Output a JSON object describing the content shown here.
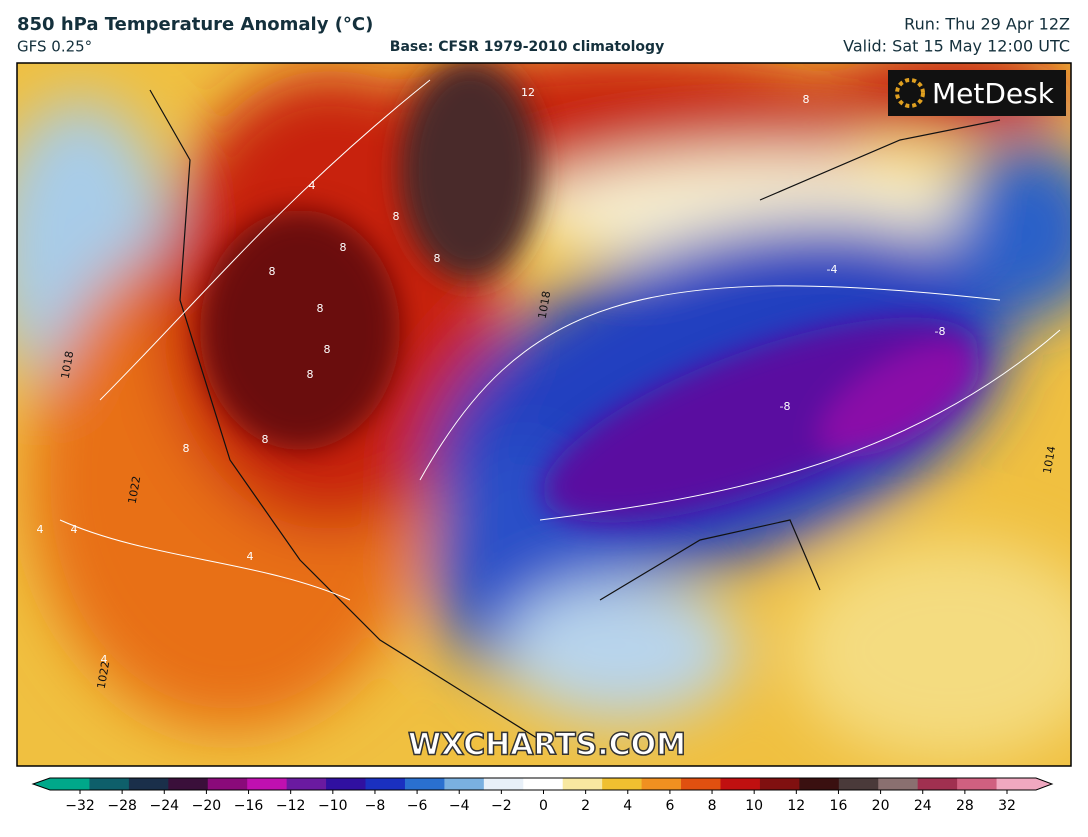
{
  "header": {
    "title": "850 hPa Temperature Anomaly (°C)",
    "model": "GFS 0.25°",
    "base": "Base: CFSR 1979-2010 climatology",
    "run": "Run: Thu 29 Apr 12Z",
    "valid": "Valid: Sat 15 May 12:00 UTC"
  },
  "logo": "MetDesk",
  "watermark": "WXCHARTS.COM",
  "contour_labels": [
    "12",
    "8",
    "-4",
    "-8",
    "-8",
    "8",
    "8",
    "8",
    "8",
    "8",
    "8",
    "8",
    "8",
    "8",
    "4",
    "4",
    "4",
    "4",
    "4",
    "1022",
    "1018",
    "1022",
    "1018",
    "1014"
  ],
  "colorbar": {
    "colors": [
      "#00a88a",
      "#0e5f6a",
      "#1a2f4a",
      "#3a0f3a",
      "#8a0a7a",
      "#c010b0",
      "#6a1aa0",
      "#3010a0",
      "#1a30c0",
      "#2a70d0",
      "#7ab0e0",
      "#e8f0f8",
      "#ffffff",
      "#f8e8a0",
      "#f0c030",
      "#f09020",
      "#e05010",
      "#c01010",
      "#801010",
      "#3a1010",
      "#4a3a3a",
      "#8a7070",
      "#a03050",
      "#d06080",
      "#f0a8c0"
    ],
    "ticks": [
      {
        "value": -32,
        "label": "−32"
      },
      {
        "value": -28,
        "label": "−28"
      },
      {
        "value": -24,
        "label": "−24"
      },
      {
        "value": -20,
        "label": "−20"
      },
      {
        "value": -16,
        "label": "−16"
      },
      {
        "value": -12,
        "label": "−12"
      },
      {
        "value": -10,
        "label": "−10"
      },
      {
        "value": -8,
        "label": "−8"
      },
      {
        "value": -6,
        "label": "−6"
      },
      {
        "value": -4,
        "label": "−4"
      },
      {
        "value": -2,
        "label": "−2"
      },
      0,
      2,
      4,
      6,
      8,
      10,
      12,
      16,
      20,
      24,
      28,
      32
    ]
  }
}
